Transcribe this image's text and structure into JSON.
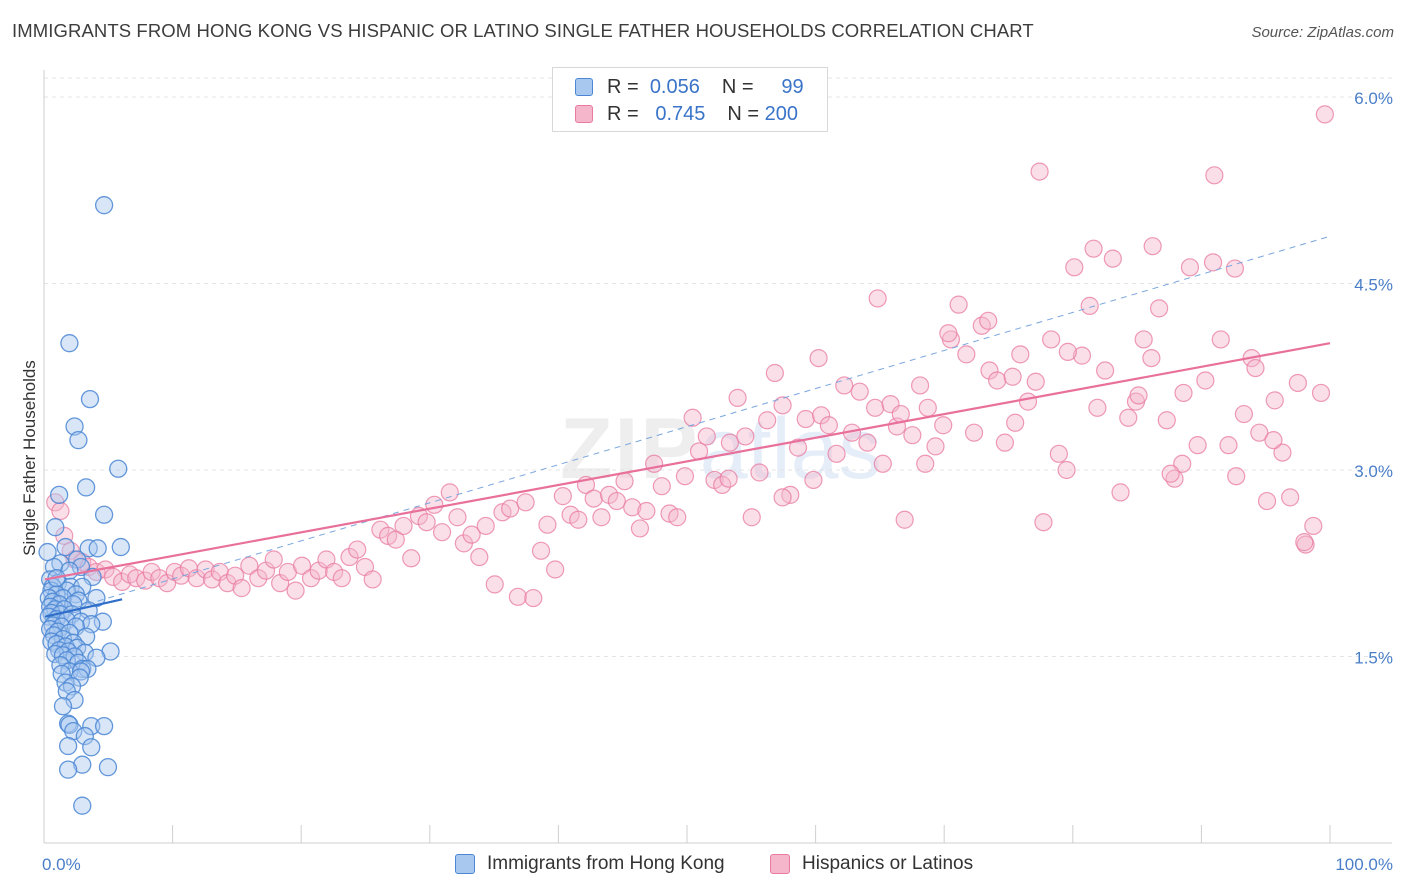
{
  "title": "IMMIGRANTS FROM HONG KONG VS HISPANIC OR LATINO SINGLE FATHER HOUSEHOLDS CORRELATION CHART",
  "source": "Source: ZipAtlas.com",
  "watermark": {
    "zip": "ZIP",
    "atlas": "atlas"
  },
  "legend": {
    "r_label": "R =",
    "n_label": "N =",
    "rows": [
      {
        "r": "0.056",
        "n": "99"
      },
      {
        "r": "0.745",
        "n": "200"
      }
    ]
  },
  "colors": {
    "blue": "#4a86d4",
    "blue_fill": "#a9c8ef",
    "blue_line": "#2f6fc9",
    "pink": "#e87aa0",
    "pink_fill": "#f5b6cb",
    "pink_line": "#e8709a",
    "tick_label": "#4a7fc8",
    "grid": "#e4e4e4"
  },
  "chart_data": {
    "type": "scatter",
    "title": "IMMIGRANTS FROM HONG KONG VS HISPANIC OR LATINO SINGLE FATHER HOUSEHOLDS CORRELATION CHART",
    "xlabel": "",
    "ylabel": "Single Father Households",
    "xlim": [
      0,
      100
    ],
    "ylim": [
      0,
      6.2
    ],
    "x_tick_labels": [
      "0.0%",
      "100.0%"
    ],
    "y_ticks": [
      1.5,
      3.0,
      4.5,
      6.0
    ],
    "y_tick_labels": [
      "1.5%",
      "3.0%",
      "4.5%",
      "6.0%"
    ],
    "grid": true,
    "legend_position": "bottom",
    "series": [
      {
        "name": "Immigrants from Hong Kong",
        "color": "#4a86d4",
        "trend": {
          "x": [
            0,
            6
          ],
          "y": [
            1.82,
            1.96
          ],
          "extended": {
            "x": [
              0,
              100
            ],
            "y": [
              1.82,
              4.88
            ]
          }
        },
        "points": [
          [
            4.6,
            5.13
          ],
          [
            1.9,
            4.02
          ],
          [
            3.5,
            3.57
          ],
          [
            2.3,
            3.35
          ],
          [
            2.6,
            3.24
          ],
          [
            5.7,
            3.01
          ],
          [
            3.2,
            2.86
          ],
          [
            1.1,
            2.8
          ],
          [
            4.6,
            2.64
          ],
          [
            0.8,
            2.54
          ],
          [
            3.4,
            2.37
          ],
          [
            4.1,
            2.37
          ],
          [
            5.9,
            2.38
          ],
          [
            1.6,
            2.38
          ],
          [
            2.5,
            2.28
          ],
          [
            1.2,
            2.25
          ],
          [
            0.7,
            2.22
          ],
          [
            2.8,
            2.22
          ],
          [
            1.9,
            2.19
          ],
          [
            3.7,
            2.14
          ],
          [
            0.4,
            2.12
          ],
          [
            1.0,
            2.09
          ],
          [
            0.6,
            2.06
          ],
          [
            2.0,
            2.06
          ],
          [
            2.9,
            2.06
          ],
          [
            0.5,
            2.03
          ],
          [
            1.7,
            2.03
          ],
          [
            0.9,
            2.0
          ],
          [
            2.4,
            2.0
          ],
          [
            0.3,
            1.97
          ],
          [
            1.4,
            1.97
          ],
          [
            2.6,
            1.95
          ],
          [
            4.0,
            1.97
          ],
          [
            0.6,
            1.94
          ],
          [
            1.1,
            1.92
          ],
          [
            2.2,
            1.92
          ],
          [
            0.4,
            1.9
          ],
          [
            0.8,
            1.88
          ],
          [
            1.5,
            1.88
          ],
          [
            3.4,
            1.87
          ],
          [
            0.5,
            1.85
          ],
          [
            1.2,
            1.84
          ],
          [
            2.1,
            1.84
          ],
          [
            0.3,
            1.82
          ],
          [
            0.9,
            1.8
          ],
          [
            1.7,
            1.79
          ],
          [
            2.8,
            1.78
          ],
          [
            4.5,
            1.78
          ],
          [
            3.6,
            1.76
          ],
          [
            0.6,
            1.75
          ],
          [
            1.3,
            1.74
          ],
          [
            2.4,
            1.74
          ],
          [
            0.4,
            1.72
          ],
          [
            1.0,
            1.7
          ],
          [
            1.9,
            1.69
          ],
          [
            0.7,
            1.67
          ],
          [
            3.2,
            1.66
          ],
          [
            1.4,
            1.64
          ],
          [
            0.5,
            1.62
          ],
          [
            2.2,
            1.61
          ],
          [
            0.9,
            1.6
          ],
          [
            1.6,
            1.58
          ],
          [
            2.5,
            1.57
          ],
          [
            1.1,
            1.55
          ],
          [
            1.8,
            1.54
          ],
          [
            3.1,
            1.53
          ],
          [
            5.1,
            1.54
          ],
          [
            0.8,
            1.52
          ],
          [
            1.4,
            1.51
          ],
          [
            2.3,
            1.5
          ],
          [
            4.0,
            1.49
          ],
          [
            1.7,
            1.47
          ],
          [
            2.6,
            1.45
          ],
          [
            1.2,
            1.43
          ],
          [
            2.9,
            1.4
          ],
          [
            1.9,
            1.38
          ],
          [
            3.3,
            1.4
          ],
          [
            2.8,
            1.38
          ],
          [
            1.3,
            1.36
          ],
          [
            2.7,
            1.33
          ],
          [
            1.6,
            1.29
          ],
          [
            2.1,
            1.26
          ],
          [
            1.7,
            1.22
          ],
          [
            2.3,
            1.15
          ],
          [
            1.4,
            1.1
          ],
          [
            1.8,
            0.96
          ],
          [
            1.9,
            0.95
          ],
          [
            3.6,
            0.94
          ],
          [
            4.6,
            0.94
          ],
          [
            2.2,
            0.9
          ],
          [
            3.1,
            0.86
          ],
          [
            1.8,
            0.78
          ],
          [
            3.6,
            0.77
          ],
          [
            2.9,
            0.63
          ],
          [
            1.8,
            0.59
          ],
          [
            4.9,
            0.61
          ],
          [
            2.9,
            0.3
          ],
          [
            0.2,
            2.34
          ],
          [
            0.9,
            2.13
          ]
        ]
      },
      {
        "name": "Hispanics or Latinos",
        "color": "#e87aa0",
        "trend": {
          "x": [
            0,
            100
          ],
          "y": [
            2.12,
            4.02
          ]
        },
        "points": [
          [
            0.8,
            2.74
          ],
          [
            1.2,
            2.67
          ],
          [
            1.5,
            2.47
          ],
          [
            2.0,
            2.35
          ],
          [
            2.3,
            2.28
          ],
          [
            2.9,
            2.26
          ],
          [
            3.4,
            2.22
          ],
          [
            4.0,
            2.18
          ],
          [
            4.7,
            2.2
          ],
          [
            5.3,
            2.14
          ],
          [
            6.0,
            2.1
          ],
          [
            6.6,
            2.16
          ],
          [
            7.1,
            2.13
          ],
          [
            7.8,
            2.11
          ],
          [
            8.3,
            2.18
          ],
          [
            8.9,
            2.13
          ],
          [
            9.5,
            2.09
          ],
          [
            10.1,
            2.18
          ],
          [
            10.6,
            2.15
          ],
          [
            11.2,
            2.21
          ],
          [
            11.8,
            2.13
          ],
          [
            12.5,
            2.2
          ],
          [
            13.0,
            2.12
          ],
          [
            13.6,
            2.18
          ],
          [
            14.2,
            2.09
          ],
          [
            14.8,
            2.15
          ],
          [
            15.3,
            2.05
          ],
          [
            15.9,
            2.23
          ],
          [
            16.6,
            2.13
          ],
          [
            17.2,
            2.19
          ],
          [
            17.8,
            2.28
          ],
          [
            18.3,
            2.09
          ],
          [
            18.9,
            2.18
          ],
          [
            19.5,
            2.03
          ],
          [
            20.0,
            2.23
          ],
          [
            20.7,
            2.13
          ],
          [
            21.3,
            2.19
          ],
          [
            21.9,
            2.28
          ],
          [
            22.5,
            2.18
          ],
          [
            23.1,
            2.13
          ],
          [
            23.7,
            2.3
          ],
          [
            24.3,
            2.36
          ],
          [
            24.9,
            2.22
          ],
          [
            25.5,
            2.12
          ],
          [
            26.1,
            2.52
          ],
          [
            26.7,
            2.47
          ],
          [
            27.3,
            2.44
          ],
          [
            27.9,
            2.55
          ],
          [
            28.5,
            2.29
          ],
          [
            29.1,
            2.63
          ],
          [
            29.7,
            2.58
          ],
          [
            30.3,
            2.72
          ],
          [
            30.9,
            2.5
          ],
          [
            31.5,
            2.82
          ],
          [
            32.1,
            2.62
          ],
          [
            32.6,
            2.41
          ],
          [
            33.2,
            2.48
          ],
          [
            33.8,
            2.3
          ],
          [
            34.3,
            2.55
          ],
          [
            35.0,
            2.08
          ],
          [
            35.6,
            2.66
          ],
          [
            36.2,
            2.69
          ],
          [
            36.8,
            1.98
          ],
          [
            37.4,
            2.74
          ],
          [
            38.0,
            1.97
          ],
          [
            38.6,
            2.35
          ],
          [
            39.1,
            2.56
          ],
          [
            39.7,
            2.2
          ],
          [
            40.3,
            2.79
          ],
          [
            40.9,
            2.64
          ],
          [
            41.5,
            2.6
          ],
          [
            42.1,
            2.88
          ],
          [
            42.7,
            2.77
          ],
          [
            43.3,
            2.62
          ],
          [
            43.9,
            2.8
          ],
          [
            44.5,
            2.75
          ],
          [
            45.1,
            2.91
          ],
          [
            45.7,
            2.7
          ],
          [
            46.3,
            2.53
          ],
          [
            46.8,
            2.67
          ],
          [
            47.4,
            3.05
          ],
          [
            48.0,
            2.87
          ],
          [
            48.6,
            2.65
          ],
          [
            49.2,
            2.62
          ],
          [
            49.8,
            2.95
          ],
          [
            50.4,
            3.42
          ],
          [
            50.9,
            3.15
          ],
          [
            51.5,
            3.27
          ],
          [
            52.1,
            2.92
          ],
          [
            52.7,
            2.88
          ],
          [
            53.3,
            3.22
          ],
          [
            53.9,
            3.58
          ],
          [
            54.5,
            3.27
          ],
          [
            55.0,
            2.62
          ],
          [
            55.6,
            2.98
          ],
          [
            56.2,
            3.4
          ],
          [
            56.8,
            3.78
          ],
          [
            57.4,
            3.52
          ],
          [
            58.0,
            2.8
          ],
          [
            58.6,
            3.18
          ],
          [
            59.2,
            3.41
          ],
          [
            59.8,
            2.92
          ],
          [
            60.4,
            3.44
          ],
          [
            61.0,
            3.36
          ],
          [
            61.6,
            3.13
          ],
          [
            62.2,
            3.68
          ],
          [
            62.8,
            3.3
          ],
          [
            63.4,
            3.63
          ],
          [
            64.0,
            3.22
          ],
          [
            64.6,
            3.5
          ],
          [
            65.2,
            3.05
          ],
          [
            65.8,
            3.53
          ],
          [
            66.3,
            3.35
          ],
          [
            66.9,
            2.6
          ],
          [
            67.5,
            3.28
          ],
          [
            68.1,
            3.68
          ],
          [
            68.7,
            3.5
          ],
          [
            69.3,
            3.19
          ],
          [
            69.9,
            3.36
          ],
          [
            70.5,
            4.05
          ],
          [
            71.1,
            4.33
          ],
          [
            71.7,
            3.93
          ],
          [
            72.3,
            3.3
          ],
          [
            72.9,
            4.16
          ],
          [
            73.5,
            3.8
          ],
          [
            74.1,
            3.72
          ],
          [
            74.7,
            3.22
          ],
          [
            75.3,
            3.75
          ],
          [
            75.9,
            3.93
          ],
          [
            76.5,
            3.55
          ],
          [
            77.1,
            3.71
          ],
          [
            77.7,
            2.58
          ],
          [
            78.3,
            4.05
          ],
          [
            78.9,
            3.13
          ],
          [
            79.5,
            3.0
          ],
          [
            80.1,
            4.63
          ],
          [
            80.7,
            3.92
          ],
          [
            81.3,
            4.32
          ],
          [
            81.9,
            3.5
          ],
          [
            82.5,
            3.8
          ],
          [
            83.1,
            4.7
          ],
          [
            83.7,
            2.82
          ],
          [
            84.3,
            3.42
          ],
          [
            84.9,
            3.55
          ],
          [
            85.5,
            4.05
          ],
          [
            86.1,
            3.9
          ],
          [
            86.7,
            4.3
          ],
          [
            87.3,
            3.4
          ],
          [
            87.9,
            2.93
          ],
          [
            88.5,
            3.05
          ],
          [
            89.1,
            4.63
          ],
          [
            89.7,
            3.2
          ],
          [
            90.3,
            3.72
          ],
          [
            90.9,
            4.67
          ],
          [
            91.5,
            4.05
          ],
          [
            92.1,
            3.2
          ],
          [
            92.7,
            2.95
          ],
          [
            93.3,
            3.45
          ],
          [
            93.9,
            3.9
          ],
          [
            94.5,
            3.3
          ],
          [
            95.1,
            2.75
          ],
          [
            95.7,
            3.56
          ],
          [
            96.3,
            3.14
          ],
          [
            96.9,
            2.78
          ],
          [
            97.5,
            3.7
          ],
          [
            98.1,
            2.4
          ],
          [
            98.7,
            2.55
          ],
          [
            99.3,
            3.62
          ],
          [
            77.4,
            5.4
          ],
          [
            91.0,
            5.37
          ],
          [
            99.6,
            5.86
          ],
          [
            64.8,
            4.38
          ],
          [
            81.6,
            4.78
          ],
          [
            86.2,
            4.8
          ],
          [
            92.6,
            4.62
          ],
          [
            70.3,
            4.1
          ],
          [
            73.4,
            4.2
          ],
          [
            79.6,
            3.95
          ],
          [
            94.2,
            3.82
          ],
          [
            85.1,
            3.6
          ],
          [
            60.2,
            3.9
          ],
          [
            66.6,
            3.45
          ],
          [
            75.5,
            3.38
          ],
          [
            87.6,
            2.97
          ],
          [
            95.6,
            3.24
          ],
          [
            98.0,
            2.42
          ],
          [
            68.5,
            3.05
          ],
          [
            57.4,
            2.78
          ],
          [
            53.2,
            2.93
          ],
          [
            88.6,
            3.62
          ]
        ]
      }
    ]
  }
}
